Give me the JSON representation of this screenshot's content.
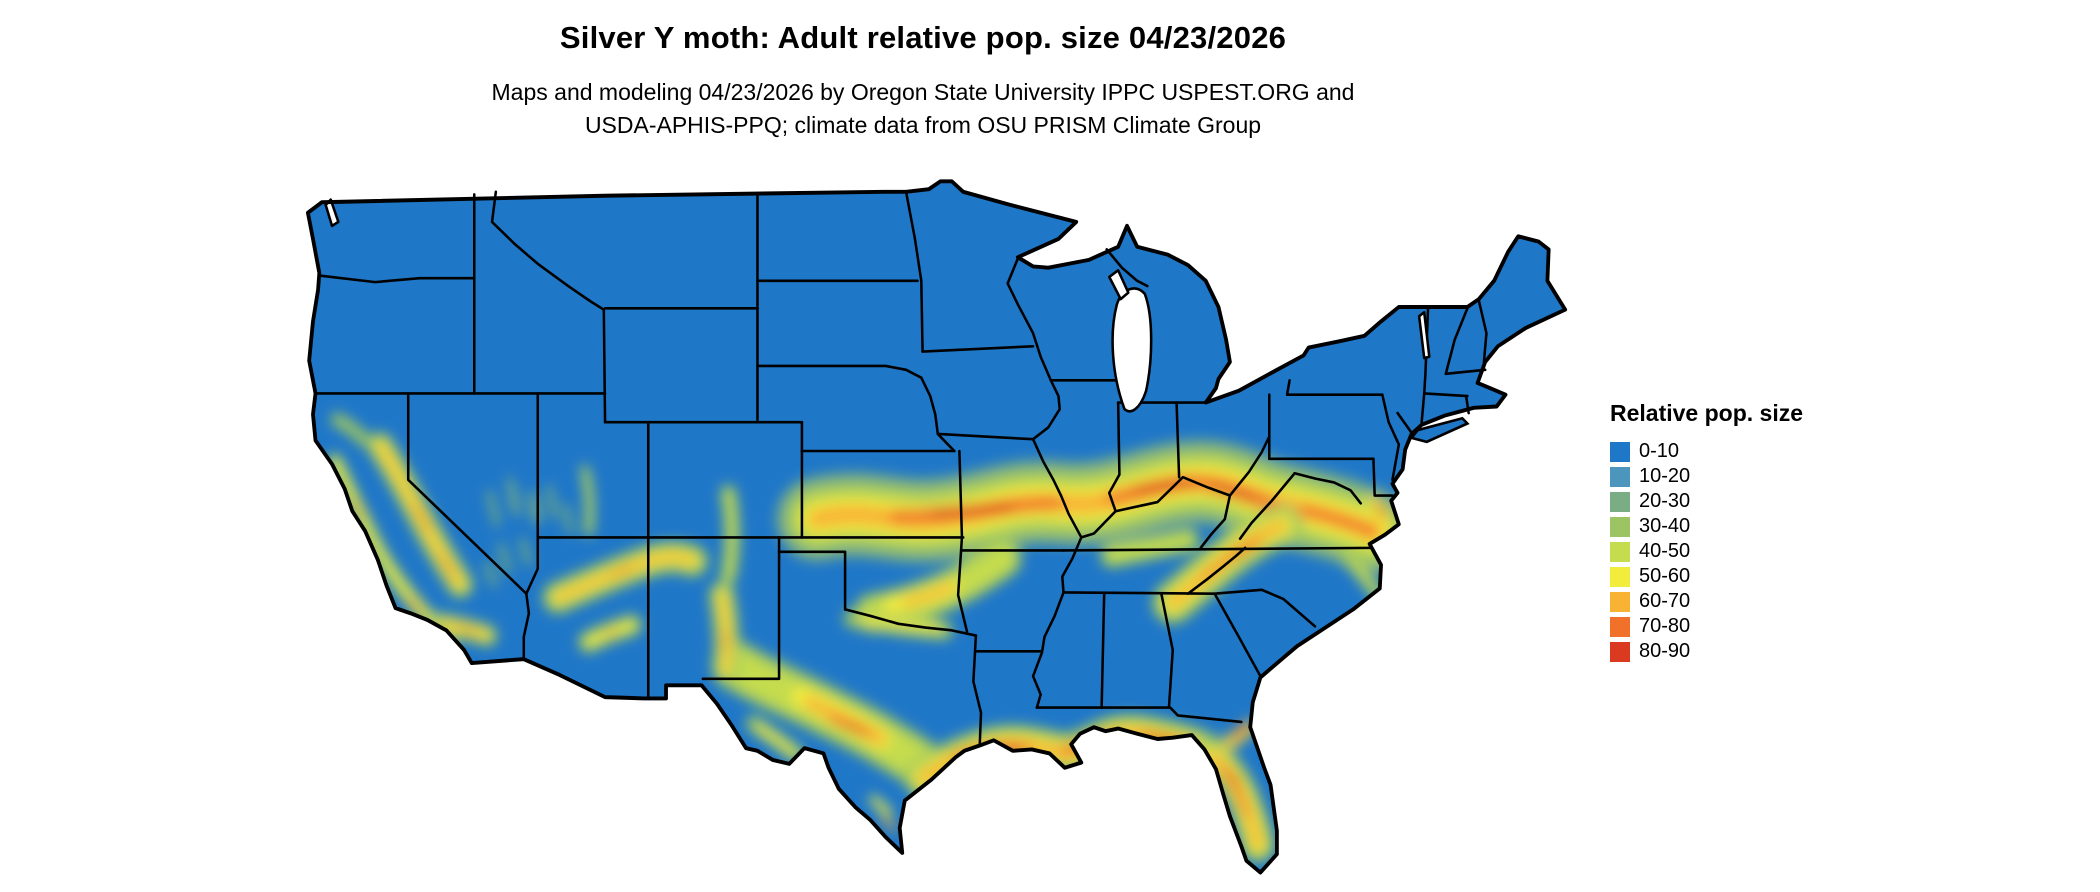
{
  "title": "Silver Y moth: Adult relative pop. size 04/23/2026",
  "subtitle": {
    "line1": "Maps and modeling 04/23/2026 by Oregon State University IPPC USPEST.ORG and",
    "line2": "USDA-APHIS-PPQ; climate data from OSU PRISM Climate Group"
  },
  "map": {
    "region": "Contiguous United States",
    "border_color": "#000000",
    "water_color": "#FFFFFF"
  },
  "legend": {
    "title": "Relative pop. size",
    "entries": [
      {
        "label": "0-10",
        "color": "#1F77C8"
      },
      {
        "label": "10-20",
        "color": "#4C95BD"
      },
      {
        "label": "20-30",
        "color": "#7BAD85"
      },
      {
        "label": "30-40",
        "color": "#9CC462"
      },
      {
        "label": "40-50",
        "color": "#C4DC4E"
      },
      {
        "label": "50-60",
        "color": "#F2EC3C"
      },
      {
        "label": "60-70",
        "color": "#F8B234"
      },
      {
        "label": "70-80",
        "color": "#F2712A"
      },
      {
        "label": "80-90",
        "color": "#D93A20"
      }
    ]
  },
  "chart_data": {
    "type": "heatmap",
    "title": "Silver Y moth: Adult relative pop. size 04/23/2026",
    "subtitle": "Maps and modeling 04/23/2026 by Oregon State University IPPC USPEST.ORG and USDA-APHIS-PPQ; climate data from OSU PRISM Climate Group",
    "variable": "Relative pop. size",
    "date": "04/23/2026",
    "region": "Contiguous United States",
    "legend_position": "right",
    "classes": [
      {
        "range": "0-10",
        "color": "#1F77C8"
      },
      {
        "range": "10-20",
        "color": "#4C95BD"
      },
      {
        "range": "20-30",
        "color": "#7BAD85"
      },
      {
        "range": "30-40",
        "color": "#9CC462"
      },
      {
        "range": "40-50",
        "color": "#C4DC4E"
      },
      {
        "range": "50-60",
        "color": "#F2EC3C"
      },
      {
        "range": "60-70",
        "color": "#F8B234"
      },
      {
        "range": "70-80",
        "color": "#F2712A"
      },
      {
        "range": "80-90",
        "color": "#D93A20"
      }
    ],
    "hotspot_regions": [
      "Central Plains band from Kansas through Missouri",
      "Ohio Valley through Kentucky, southern Indiana/Ohio and West Virginia into Virginia",
      "Southern Appalachians (east Tennessee / western North Carolina)",
      "Central and west Texas",
      "Gulf Coast from Texas through Louisiana, Mississippi and the Florida panhandle",
      "Northern and central Florida",
      "California Sierra Nevada and Coast Ranges",
      "Arizona and New Mexico mountain ranges"
    ],
    "low_value_regions": [
      "Pacific Northwest, northern Rockies, northern Plains, Great Lakes, Northeast and interior Southeast are predominantly 0-10"
    ]
  }
}
